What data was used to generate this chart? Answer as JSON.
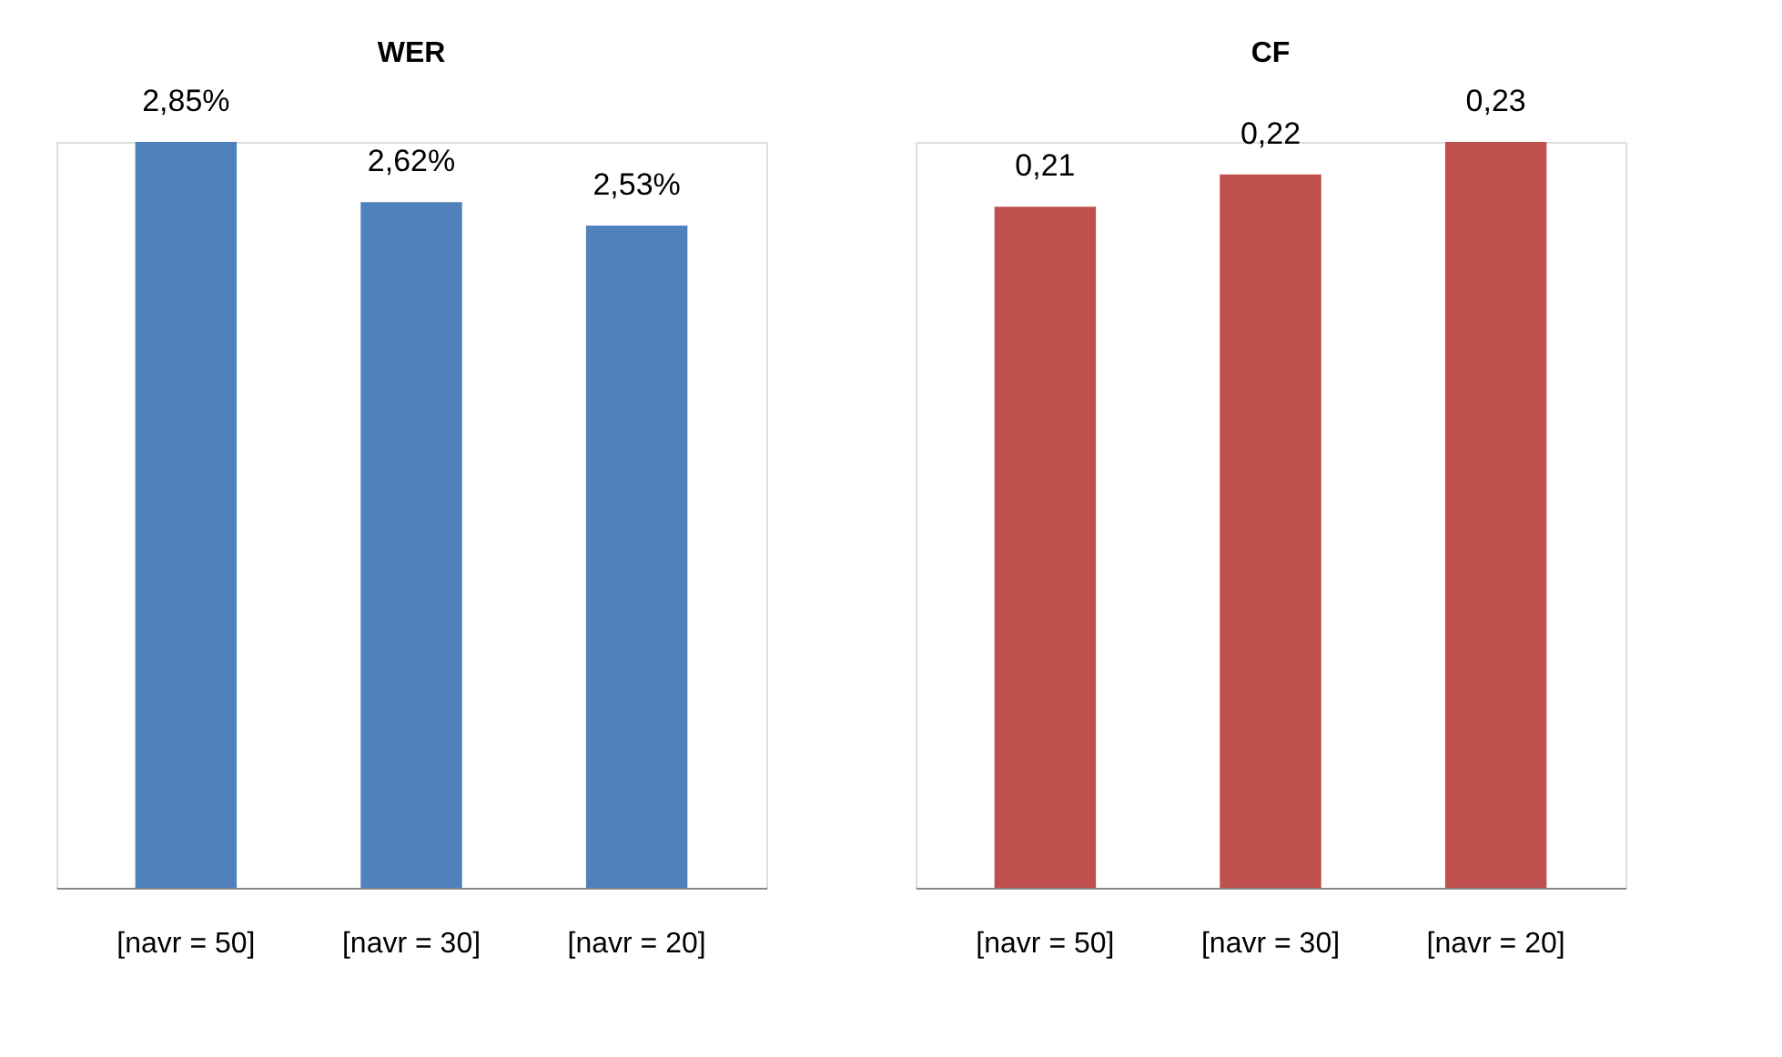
{
  "chart_data": [
    {
      "type": "bar",
      "title": "WER",
      "categories": [
        "[navr = 50]",
        "[navr = 30]",
        "[navr = 20]"
      ],
      "values": [
        2.85,
        2.62,
        2.53
      ],
      "value_labels": [
        "2,85%",
        "2,62%",
        "2,53%"
      ],
      "color": "#4f81bd",
      "tick_labels": "x",
      "grid": false
    },
    {
      "type": "bar",
      "title": "CF",
      "categories": [
        "[navr = 50]",
        "[navr = 30]",
        "[navr = 20]"
      ],
      "values": [
        0.21,
        0.22,
        0.23
      ],
      "value_labels": [
        "0,21",
        "0,22",
        "0,23"
      ],
      "color": "#c0504d",
      "tick_labels": "x",
      "grid": false
    }
  ]
}
